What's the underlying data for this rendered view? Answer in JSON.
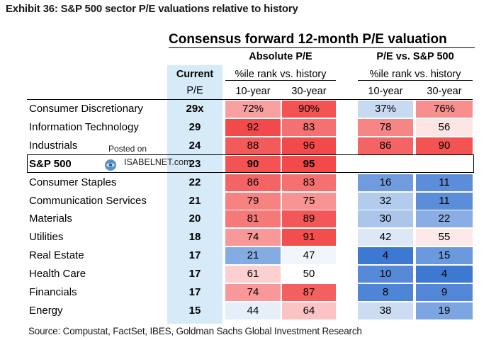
{
  "exhibit_title": "Exhibit 36: S&P 500 sector P/E valuations relative to history",
  "source": "Source: Compustat, FactSet, IBES, Goldman Sachs Global Investment Research",
  "watermark": {
    "line1": "Posted on",
    "line2": "ISABELNET.com"
  },
  "chart_data": {
    "type": "table",
    "title": "Consensus forward 12-month P/E valuation",
    "group_headers": [
      "Absolute P/E",
      "P/E vs. S&P 500"
    ],
    "current_header": [
      "Current",
      "P/E"
    ],
    "sub_header": "%ile rank vs. history",
    "period_headers": [
      "10-year",
      "30-year",
      "10-year",
      "30-year"
    ],
    "rows": [
      {
        "name": "Consumer Discretionary",
        "current": "29x",
        "abs10": "72%",
        "abs30": "90%",
        "rel10": "37%",
        "rel30": "76%",
        "v": [
          72,
          90,
          37,
          76
        ]
      },
      {
        "name": "Information Technology",
        "current": "29",
        "abs10": "92",
        "abs30": "83",
        "rel10": "78",
        "rel30": "56",
        "v": [
          92,
          83,
          78,
          56
        ]
      },
      {
        "name": "Industrials",
        "current": "24",
        "abs10": "88",
        "abs30": "96",
        "rel10": "86",
        "rel30": "90",
        "v": [
          88,
          96,
          86,
          90
        ]
      },
      {
        "name": "S&P 500",
        "current": "23",
        "abs10": "90",
        "abs30": "95",
        "rel10": "",
        "rel30": "",
        "v": [
          90,
          95,
          null,
          null
        ]
      },
      {
        "name": "Consumer Staples",
        "current": "22",
        "abs10": "86",
        "abs30": "83",
        "rel10": "16",
        "rel30": "11",
        "v": [
          86,
          83,
          16,
          11
        ]
      },
      {
        "name": "Communication Services",
        "current": "21",
        "abs10": "79",
        "abs30": "75",
        "rel10": "32",
        "rel30": "11",
        "v": [
          79,
          75,
          32,
          11
        ]
      },
      {
        "name": "Materials",
        "current": "20",
        "abs10": "81",
        "abs30": "89",
        "rel10": "30",
        "rel30": "22",
        "v": [
          81,
          89,
          30,
          22
        ]
      },
      {
        "name": "Utilities",
        "current": "18",
        "abs10": "74",
        "abs30": "91",
        "rel10": "42",
        "rel30": "55",
        "v": [
          74,
          91,
          42,
          55
        ]
      },
      {
        "name": "Real Estate",
        "current": "17",
        "abs10": "21",
        "abs30": "47",
        "rel10": "4",
        "rel30": "15",
        "v": [
          21,
          47,
          4,
          15
        ]
      },
      {
        "name": "Health Care",
        "current": "17",
        "abs10": "61",
        "abs30": "50",
        "rel10": "10",
        "rel30": "4",
        "v": [
          61,
          50,
          10,
          4
        ]
      },
      {
        "name": "Financials",
        "current": "17",
        "abs10": "74",
        "abs30": "87",
        "rel10": "8",
        "rel30": "9",
        "v": [
          74,
          87,
          8,
          9
        ]
      },
      {
        "name": "Energy",
        "current": "15",
        "abs10": "44",
        "abs30": "64",
        "rel10": "38",
        "rel30": "19",
        "v": [
          44,
          64,
          38,
          19
        ]
      }
    ],
    "colors": {
      "high": "#f24a4a",
      "mid": "#ffffff",
      "low": "#3d79d2",
      "current_col": "#d7eaf8"
    }
  }
}
